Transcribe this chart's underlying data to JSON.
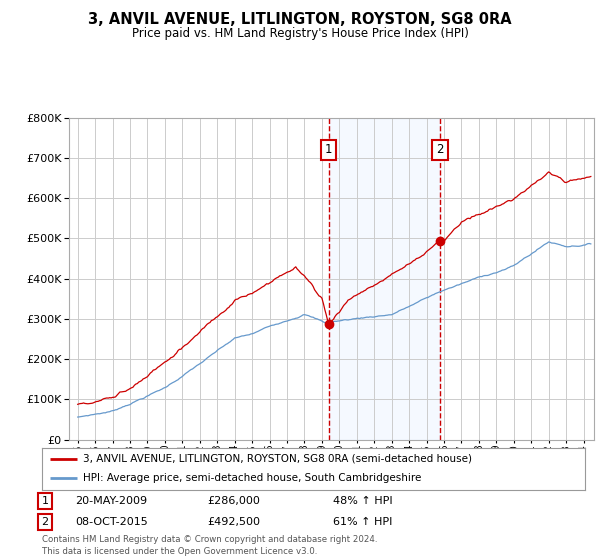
{
  "title": "3, ANVIL AVENUE, LITLINGTON, ROYSTON, SG8 0RA",
  "subtitle": "Price paid vs. HM Land Registry's House Price Index (HPI)",
  "legend_line1": "3, ANVIL AVENUE, LITLINGTON, ROYSTON, SG8 0RA (semi-detached house)",
  "legend_line2": "HPI: Average price, semi-detached house, South Cambridgeshire",
  "footer": "Contains HM Land Registry data © Crown copyright and database right 2024.\nThis data is licensed under the Open Government Licence v3.0.",
  "sale1_date": "20-MAY-2009",
  "sale1_price": 286000,
  "sale1_label": "48% ↑ HPI",
  "sale1_year": 2009.38,
  "sale2_date": "08-OCT-2015",
  "sale2_price": 492500,
  "sale2_label": "61% ↑ HPI",
  "sale2_year": 2015.77,
  "red_color": "#cc0000",
  "blue_color": "#6699cc",
  "background_color": "#ffffff",
  "grid_color": "#cccccc",
  "shade_color": "#ddeeff",
  "ylim": [
    0,
    800000
  ],
  "xlim_start": 1994.5,
  "xlim_end": 2024.6
}
